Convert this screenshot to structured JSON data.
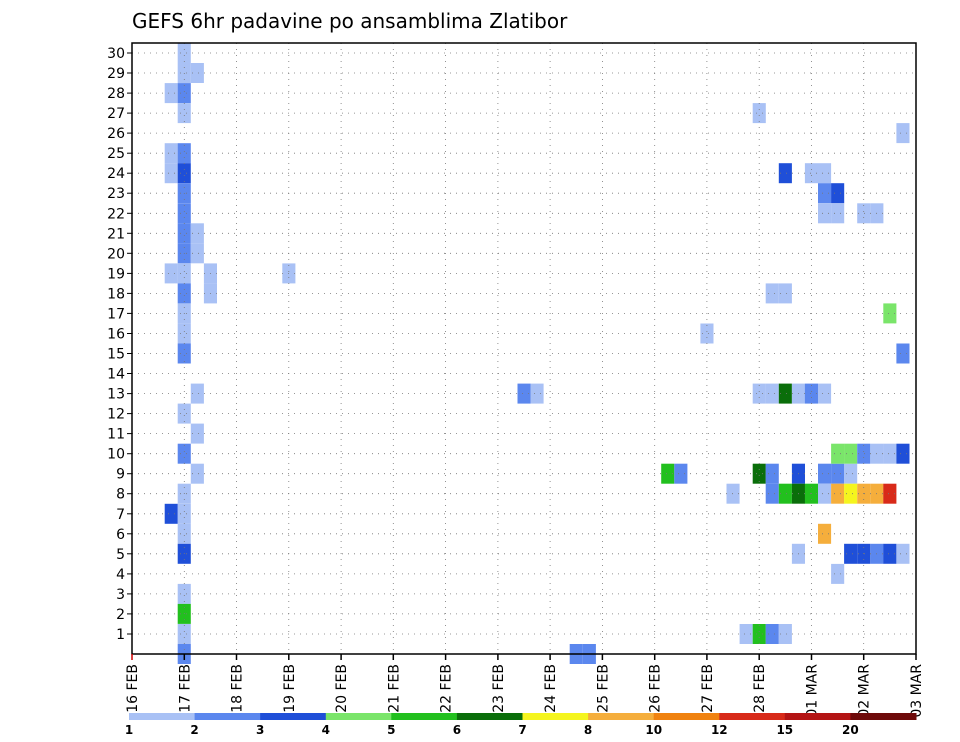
{
  "chart_data": {
    "type": "heatmap",
    "title": "GEFS 6hr padavine po ansamblima Zlatibor",
    "x_dates": [
      "16 FEB",
      "17 FEB",
      "18 FEB",
      "19 FEB",
      "20 FEB",
      "21 FEB",
      "22 FEB",
      "23 FEB",
      "24 FEB",
      "25 FEB",
      "26 FEB",
      "27 FEB",
      "28 FEB",
      "01 MAR",
      "02 MAR",
      "03 MAR"
    ],
    "y_members": [
      "1",
      "2",
      "3",
      "4",
      "5",
      "6",
      "7",
      "8",
      "9",
      "10",
      "11",
      "12",
      "13",
      "14",
      "15",
      "16",
      "17",
      "18",
      "19",
      "20",
      "21",
      "22",
      "23",
      "24",
      "25",
      "26",
      "27",
      "28",
      "29",
      "30"
    ],
    "ylim": [
      0,
      30
    ],
    "grid": true,
    "legend": {
      "placement": "bottom",
      "labels": [
        "1",
        "2",
        "3",
        "4",
        "5",
        "6",
        "7",
        "8",
        "10",
        "12",
        "15",
        "20"
      ],
      "colors": [
        "#a9c1f5",
        "#5b87ee",
        "#1f4fd8",
        "#7ae56a",
        "#22c01e",
        "#0a6e0a",
        "#f5f51e",
        "#f5ae3c",
        "#f0820f",
        "#d82a19",
        "#b41414",
        "#6e0a0a"
      ]
    },
    "cells": [
      {
        "day": 1.0,
        "member": 30,
        "value": 1
      },
      {
        "day": 1.0,
        "member": 29,
        "value": 1
      },
      {
        "day": 1.25,
        "member": 29,
        "value": 1
      },
      {
        "day": 0.75,
        "member": 28,
        "value": 1
      },
      {
        "day": 1.0,
        "member": 28,
        "value": 2
      },
      {
        "day": 1.0,
        "member": 27,
        "value": 1
      },
      {
        "day": 0.75,
        "member": 25,
        "value": 1
      },
      {
        "day": 1.0,
        "member": 25,
        "value": 2
      },
      {
        "day": 0.75,
        "member": 24,
        "value": 1
      },
      {
        "day": 1.0,
        "member": 24,
        "value": 3
      },
      {
        "day": 1.0,
        "member": 23,
        "value": 2
      },
      {
        "day": 1.0,
        "member": 22,
        "value": 2
      },
      {
        "day": 1.0,
        "member": 21,
        "value": 2
      },
      {
        "day": 1.25,
        "member": 21,
        "value": 1
      },
      {
        "day": 1.0,
        "member": 20,
        "value": 2
      },
      {
        "day": 1.25,
        "member": 20,
        "value": 1
      },
      {
        "day": 0.75,
        "member": 19,
        "value": 1
      },
      {
        "day": 1.0,
        "member": 19,
        "value": 1
      },
      {
        "day": 1.5,
        "member": 19,
        "value": 1
      },
      {
        "day": 3.0,
        "member": 19,
        "value": 1
      },
      {
        "day": 1.0,
        "member": 18,
        "value": 2
      },
      {
        "day": 1.5,
        "member": 18,
        "value": 1
      },
      {
        "day": 1.0,
        "member": 17,
        "value": 1
      },
      {
        "day": 1.0,
        "member": 16,
        "value": 1
      },
      {
        "day": 1.0,
        "member": 15,
        "value": 2
      },
      {
        "day": 1.25,
        "member": 13,
        "value": 1
      },
      {
        "day": 1.0,
        "member": 12,
        "value": 1
      },
      {
        "day": 1.25,
        "member": 11,
        "value": 1
      },
      {
        "day": 1.0,
        "member": 10,
        "value": 2
      },
      {
        "day": 1.25,
        "member": 9,
        "value": 1
      },
      {
        "day": 1.0,
        "member": 8,
        "value": 1
      },
      {
        "day": 0.75,
        "member": 7,
        "value": 3
      },
      {
        "day": 1.0,
        "member": 7,
        "value": 1
      },
      {
        "day": 1.0,
        "member": 6,
        "value": 1
      },
      {
        "day": 1.0,
        "member": 5,
        "value": 3
      },
      {
        "day": 1.0,
        "member": 3,
        "value": 1
      },
      {
        "day": 1.0,
        "member": 2,
        "value": 5
      },
      {
        "day": 1.0,
        "member": 1,
        "value": 1
      },
      {
        "day": 1.0,
        "member": 0,
        "value": 2
      },
      {
        "day": 7.5,
        "member": 13,
        "value": 2
      },
      {
        "day": 7.75,
        "member": 13,
        "value": 1
      },
      {
        "day": 8.5,
        "member": 0,
        "value": 2
      },
      {
        "day": 8.75,
        "member": 0,
        "value": 2
      },
      {
        "day": 10.25,
        "member": 9,
        "value": 5
      },
      {
        "day": 10.5,
        "member": 9,
        "value": 2
      },
      {
        "day": 11.0,
        "member": 16,
        "value": 1
      },
      {
        "day": 11.5,
        "member": 8,
        "value": 1
      },
      {
        "day": 11.75,
        "member": 1,
        "value": 1
      },
      {
        "day": 12.0,
        "member": 1,
        "value": 5
      },
      {
        "day": 12.25,
        "member": 1,
        "value": 2
      },
      {
        "day": 12.5,
        "member": 1,
        "value": 1
      },
      {
        "day": 12.0,
        "member": 27,
        "value": 1
      },
      {
        "day": 12.0,
        "member": 13,
        "value": 1
      },
      {
        "day": 12.25,
        "member": 13,
        "value": 1
      },
      {
        "day": 12.5,
        "member": 13,
        "value": 6
      },
      {
        "day": 12.75,
        "member": 13,
        "value": 1
      },
      {
        "day": 13.0,
        "member": 13,
        "value": 2
      },
      {
        "day": 13.25,
        "member": 13,
        "value": 1
      },
      {
        "day": 12.5,
        "member": 24,
        "value": 3
      },
      {
        "day": 12.25,
        "member": 18,
        "value": 1
      },
      {
        "day": 12.5,
        "member": 18,
        "value": 1
      },
      {
        "day": 13.0,
        "member": 24,
        "value": 1
      },
      {
        "day": 13.25,
        "member": 24,
        "value": 1
      },
      {
        "day": 13.25,
        "member": 23,
        "value": 2
      },
      {
        "day": 13.5,
        "member": 23,
        "value": 3
      },
      {
        "day": 13.25,
        "member": 22,
        "value": 1
      },
      {
        "day": 13.5,
        "member": 22,
        "value": 1
      },
      {
        "day": 14.0,
        "member": 22,
        "value": 1
      },
      {
        "day": 14.25,
        "member": 22,
        "value": 1
      },
      {
        "day": 12.0,
        "member": 9,
        "value": 6
      },
      {
        "day": 12.25,
        "member": 9,
        "value": 2
      },
      {
        "day": 12.75,
        "member": 9,
        "value": 3
      },
      {
        "day": 13.25,
        "member": 9,
        "value": 2
      },
      {
        "day": 13.5,
        "member": 9,
        "value": 2
      },
      {
        "day": 13.75,
        "member": 9,
        "value": 1
      },
      {
        "day": 12.25,
        "member": 8,
        "value": 2
      },
      {
        "day": 12.5,
        "member": 8,
        "value": 5
      },
      {
        "day": 12.75,
        "member": 8,
        "value": 6
      },
      {
        "day": 13.0,
        "member": 8,
        "value": 5
      },
      {
        "day": 13.25,
        "member": 8,
        "value": 1
      },
      {
        "day": 13.5,
        "member": 8,
        "value": 8
      },
      {
        "day": 13.75,
        "member": 8,
        "value": 7
      },
      {
        "day": 14.0,
        "member": 8,
        "value": 8
      },
      {
        "day": 14.25,
        "member": 8,
        "value": 8
      },
      {
        "day": 14.5,
        "member": 8,
        "value": 10
      },
      {
        "day": 13.5,
        "member": 10,
        "value": 4
      },
      {
        "day": 13.75,
        "member": 10,
        "value": 4
      },
      {
        "day": 14.0,
        "member": 10,
        "value": 2
      },
      {
        "day": 14.25,
        "member": 10,
        "value": 1
      },
      {
        "day": 14.5,
        "member": 10,
        "value": 1
      },
      {
        "day": 14.75,
        "member": 10,
        "value": 3
      },
      {
        "day": 13.25,
        "member": 6,
        "value": 8
      },
      {
        "day": 12.75,
        "member": 5,
        "value": 1
      },
      {
        "day": 13.75,
        "member": 5,
        "value": 3
      },
      {
        "day": 14.0,
        "member": 5,
        "value": 3
      },
      {
        "day": 14.25,
        "member": 5,
        "value": 2
      },
      {
        "day": 14.5,
        "member": 5,
        "value": 3
      },
      {
        "day": 14.75,
        "member": 5,
        "value": 1
      },
      {
        "day": 13.5,
        "member": 4,
        "value": 1
      },
      {
        "day": 14.75,
        "member": 26,
        "value": 1
      },
      {
        "day": 14.5,
        "member": 17,
        "value": 4
      },
      {
        "day": 14.75,
        "member": 15,
        "value": 2
      }
    ]
  }
}
